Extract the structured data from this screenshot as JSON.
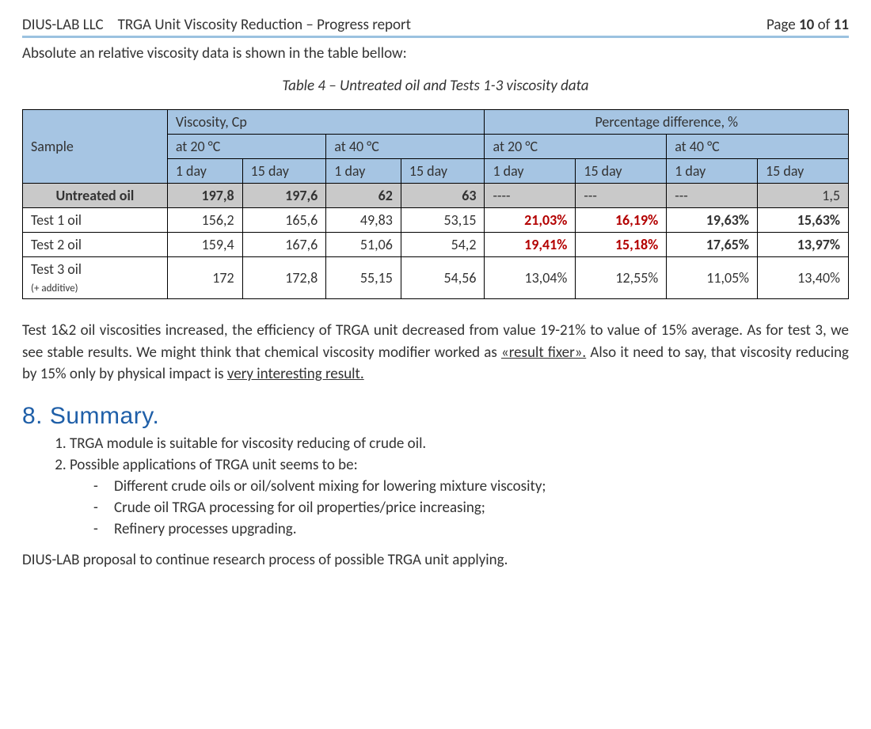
{
  "header": {
    "company": "DIUS-LAB LLC",
    "title": "TRGA Unit Viscosity Reduction – Progress report",
    "page_prefix": "Page ",
    "page_current": "10",
    "page_of": " of ",
    "page_total": "11"
  },
  "intro": "Absolute an relative viscosity data is shown in the table bellow:",
  "table_caption": "Table  4 – Untreated oil and Tests 1-3 viscosity data",
  "table": {
    "colors": {
      "header_bg": "#a6c5e3",
      "row_grey_bg": "#c9c9c9",
      "highlight_text": "#b30000",
      "border": "#000000"
    },
    "columns": {
      "sample_label": "Sample",
      "viscosity_label": "Viscosity, Cp",
      "percent_label": "Percentage difference, %",
      "at20": "at 20 °C",
      "at40": "at 40 °C",
      "d1": "1 day",
      "d15": "15 day"
    },
    "rows": [
      {
        "label": "Untreated oil",
        "grey": true,
        "bold": true,
        "sublabel": "",
        "v20_1": "197,8",
        "v20_15": "197,6",
        "v40_1": "62",
        "v40_15": "63",
        "p20_1": "----",
        "p20_15": "---",
        "p40_1": "---",
        "p40_15": "1,5",
        "p20_1_red": false,
        "p20_15_red": false,
        "p40_1_red": false,
        "p40_15_red": false
      },
      {
        "label": "Test 1 oil",
        "grey": false,
        "bold": false,
        "sublabel": "",
        "v20_1": "156,2",
        "v20_15": "165,6",
        "v40_1": "49,83",
        "v40_15": "53,15",
        "p20_1": "21,03%",
        "p20_15": "16,19%",
        "p40_1": "19,63%",
        "p40_15": "15,63%",
        "p20_1_red": true,
        "p20_15_red": true,
        "p40_1_red": false,
        "p40_15_red": false,
        "p_bold": true
      },
      {
        "label": "Test 2 oil",
        "grey": false,
        "bold": false,
        "sublabel": "",
        "v20_1": "159,4",
        "v20_15": "167,6",
        "v40_1": "51,06",
        "v40_15": "54,2",
        "p20_1": "19,41%",
        "p20_15": "15,18%",
        "p40_1": "17,65%",
        "p40_15": "13,97%",
        "p20_1_red": true,
        "p20_15_red": true,
        "p40_1_red": false,
        "p40_15_red": false,
        "p_bold": true
      },
      {
        "label": "Test 3 oil",
        "grey": false,
        "bold": false,
        "sublabel": "(+ additive)",
        "v20_1": "172",
        "v20_15": "172,8",
        "v40_1": "55,15",
        "v40_15": "54,56",
        "p20_1": "13,04%",
        "p20_15": "12,55%",
        "p40_1": "11,05%",
        "p40_15": "13,40%",
        "p20_1_red": false,
        "p20_15_red": false,
        "p40_1_red": false,
        "p40_15_red": false,
        "p_bold": false
      }
    ]
  },
  "analysis": {
    "p1_a": "Test 1&2 oil viscosities increased, the efficiency of TRGA unit decreased from value 19-21% to value of 15% average. As for test 3, we see stable results. We might think that chemical viscosity modifier worked as ",
    "p1_u1": "«result fixer».",
    "p1_b": " Also it need to say, that viscosity reducing by 15% only by physical impact is ",
    "p1_u2": "very interesting result."
  },
  "summary": {
    "heading": "8.  Summary.",
    "item1": "TRGA module is suitable for viscosity reducing of crude oil.",
    "item2": "Possible applications of TRGA unit seems to be:",
    "sub": [
      "Different crude oils or oil/solvent mixing for lowering mixture viscosity;",
      "Crude oil TRGA processing for oil properties/price increasing;",
      "Refinery processes upgrading."
    ]
  },
  "proposal": "DIUS-LAB proposal to continue research process of possible TRGA unit applying."
}
